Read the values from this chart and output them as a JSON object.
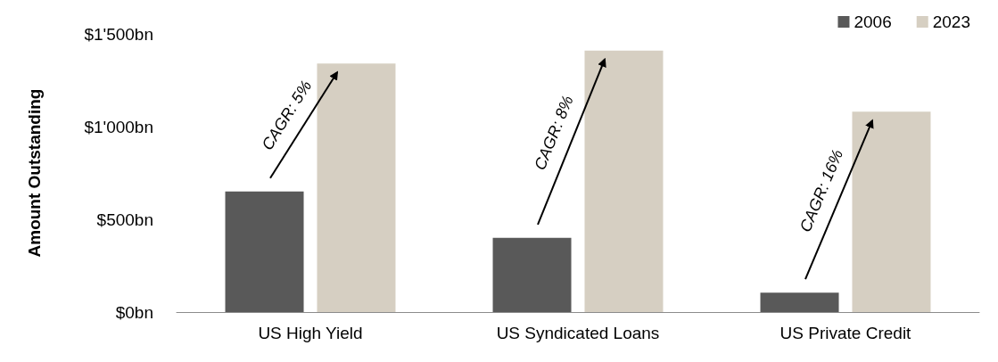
{
  "chart_data": {
    "type": "bar",
    "ylabel": "Amount Outstanding",
    "categories": [
      "US High Yield",
      "US Syndicated Loans",
      "US Private Credit"
    ],
    "series": [
      {
        "name": "2006",
        "color": "#595959",
        "values": [
          650,
          400,
          105
        ]
      },
      {
        "name": "2023",
        "color": "#d6cfc2",
        "values": [
          1340,
          1410,
          1080
        ]
      }
    ],
    "ylim": [
      0,
      1500
    ],
    "yticks": [
      {
        "value": 0,
        "label": "$0bn"
      },
      {
        "value": 500,
        "label": "$500bn"
      },
      {
        "value": 1000,
        "label": "$1'000bn"
      },
      {
        "value": 1500,
        "label": "$1'500bn"
      }
    ],
    "annotations": [
      "CAGR: 5%",
      "CAGR: 8%",
      "CAGR: 16%"
    ],
    "grid": false,
    "legend": "top right"
  }
}
